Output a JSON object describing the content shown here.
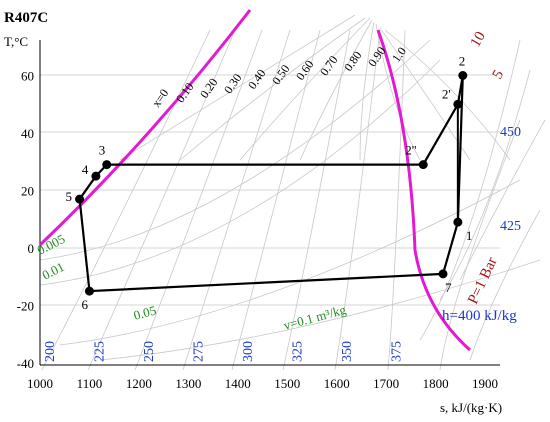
{
  "title": "R407C",
  "axis": {
    "y_label": "T,°C",
    "x_label": "s, kJ/(kg·K)",
    "x_ticks": [
      "1000",
      "1100",
      "1200",
      "1300",
      "1400",
      "1500",
      "1600",
      "1700",
      "1800",
      "1900"
    ],
    "y_ticks": [
      "60",
      "40",
      "20",
      "0",
      "-20",
      "-40"
    ]
  },
  "quality_labels": [
    "x=0",
    "0.10",
    "0.20",
    "0.30",
    "0.40",
    "0.50",
    "0.60",
    "0.70",
    "0.80",
    "0.90",
    "1.0"
  ],
  "enthalpy_labels": [
    "200",
    "225",
    "250",
    "275",
    "300",
    "325",
    "350",
    "375"
  ],
  "enthalpy_label_main": "h=400 kJ/kg",
  "enthalpy_right_labels": [
    "450",
    "425"
  ],
  "volume_labels": [
    "0.005",
    "0.01",
    "0.05"
  ],
  "volume_label_main": "v=0.1 m³/kg",
  "pressure_labels": [
    "10",
    "5"
  ],
  "pressure_label_main": "P=1 Bar",
  "cycle_points": [
    {
      "label": "1",
      "s": 1845,
      "T": 9
    },
    {
      "label": "2",
      "s": 1855,
      "T": 60
    },
    {
      "label": "2'",
      "s": 1845,
      "T": 50
    },
    {
      "label": "2''",
      "s": 1775,
      "T": 29
    },
    {
      "label": "3",
      "s": 1135,
      "T": 29
    },
    {
      "label": "4",
      "s": 1113,
      "T": 25
    },
    {
      "label": "5",
      "s": 1080,
      "T": 17
    },
    {
      "label": "6",
      "s": 1100,
      "T": -15
    },
    {
      "label": "7",
      "s": 1815,
      "T": -9
    }
  ],
  "colors": {
    "saturation": "#e21ad2",
    "cycle": "#000000",
    "grid": "#c8c8c8",
    "enthalpy": "#1a39c8",
    "volume": "#1e8a1e",
    "pressure": "#a01515"
  }
}
